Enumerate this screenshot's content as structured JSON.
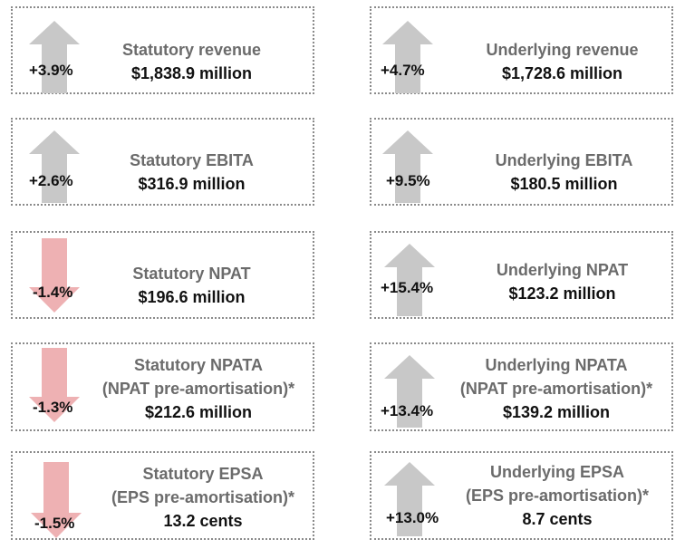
{
  "colors": {
    "up_arrow": "#c8c8c8",
    "down_arrow": "#eeb1b3",
    "label_text": "#6b6b6b",
    "value_text": "#111111",
    "border": "#8a8a8a"
  },
  "cards": [
    {
      "direction": "up",
      "change": "+3.9%",
      "lines": [
        "Statutory revenue"
      ],
      "value": "$1,838.9 million"
    },
    {
      "direction": "up",
      "change": "+4.7%",
      "lines": [
        "Underlying revenue"
      ],
      "value": "$1,728.6 million"
    },
    {
      "direction": "up",
      "change": "+2.6%",
      "lines": [
        "Statutory EBITA"
      ],
      "value": "$316.9 million"
    },
    {
      "direction": "up",
      "change": "+9.5%",
      "lines": [
        "Underlying EBITA"
      ],
      "value": "$180.5 million"
    },
    {
      "direction": "down",
      "change": "-1.4%",
      "lines": [
        "Statutory NPAT"
      ],
      "value": "$196.6 million"
    },
    {
      "direction": "up",
      "change": "+15.4%",
      "lines": [
        "Underlying NPAT"
      ],
      "value": "$123.2 million"
    },
    {
      "direction": "down",
      "change": "-1.3%",
      "lines": [
        "Statutory NPATA",
        "(NPAT pre-amortisation)*"
      ],
      "value": "$212.6 million"
    },
    {
      "direction": "up",
      "change": "+13.4%",
      "lines": [
        "Underlying NPATA",
        "(NPAT pre-amortisation)*"
      ],
      "value": "$139.2 million"
    },
    {
      "direction": "down",
      "change": "-1.5%",
      "lines": [
        "Statutory EPSA",
        "(EPS pre-amortisation)*"
      ],
      "value": "13.2 cents"
    },
    {
      "direction": "up",
      "change": "+13.0%",
      "lines": [
        "Underlying EPSA",
        "(EPS pre-amortisation)*"
      ],
      "value": "8.7 cents"
    }
  ]
}
